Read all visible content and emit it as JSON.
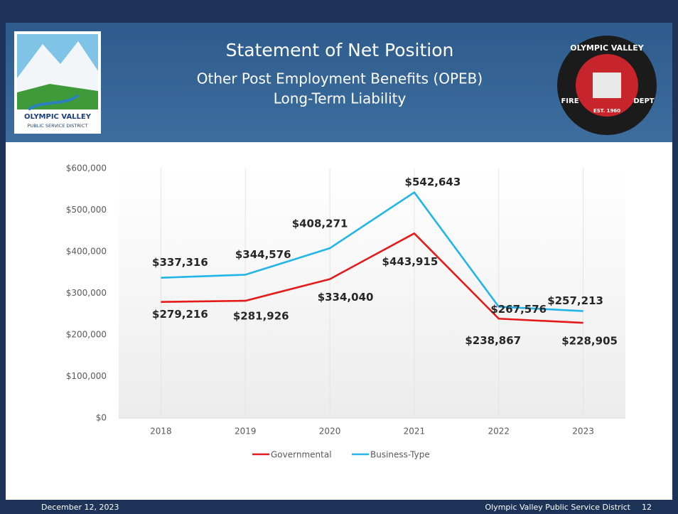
{
  "header": {
    "title": "Statement of Net Position",
    "subtitle": "Other Post Employment Benefits (OPEB)",
    "subtitle2": "Long-Term Liability"
  },
  "logos": {
    "district_name": "OLYMPIC VALLEY",
    "district_sub": "PUBLIC SERVICE DISTRICT",
    "fire_ring": "OLYMPIC VALLEY",
    "fire_left": "FIRE",
    "fire_right": "DEPT",
    "fire_est": "EST. 1960"
  },
  "chart_data": {
    "type": "line",
    "categories": [
      "2018",
      "2019",
      "2020",
      "2021",
      "2022",
      "2023"
    ],
    "series": [
      {
        "name": "Governmental",
        "color": "#e31b1b",
        "values": [
          279216,
          281926,
          334040,
          443915,
          238867,
          228905
        ],
        "value_labels": [
          "$279,216",
          "$281,926",
          "$334,040",
          "$443,915",
          "$238,867",
          "$228,905"
        ]
      },
      {
        "name": "Business-Type",
        "color": "#22b5e6",
        "values": [
          337316,
          344576,
          408271,
          542643,
          267576,
          257213
        ],
        "value_labels": [
          "$337,316",
          "$344,576",
          "$408,271",
          "$542,643",
          "$267,576",
          "$257,213"
        ]
      }
    ],
    "ylim": [
      0,
      600000
    ],
    "yticks": [
      {
        "value": 0,
        "label": "$0"
      },
      {
        "value": 100000,
        "label": "$100,000"
      },
      {
        "value": 200000,
        "label": "$200,000"
      },
      {
        "value": 300000,
        "label": "$300,000"
      },
      {
        "value": 400000,
        "label": "$400,000"
      },
      {
        "value": 500000,
        "label": "$500,000"
      },
      {
        "value": 600000,
        "label": "$600,000"
      }
    ],
    "grid": true,
    "legend": "bottom"
  },
  "footer": {
    "date": "December 12, 2023",
    "organization": "Olympic Valley Public Service District",
    "page": "12"
  }
}
